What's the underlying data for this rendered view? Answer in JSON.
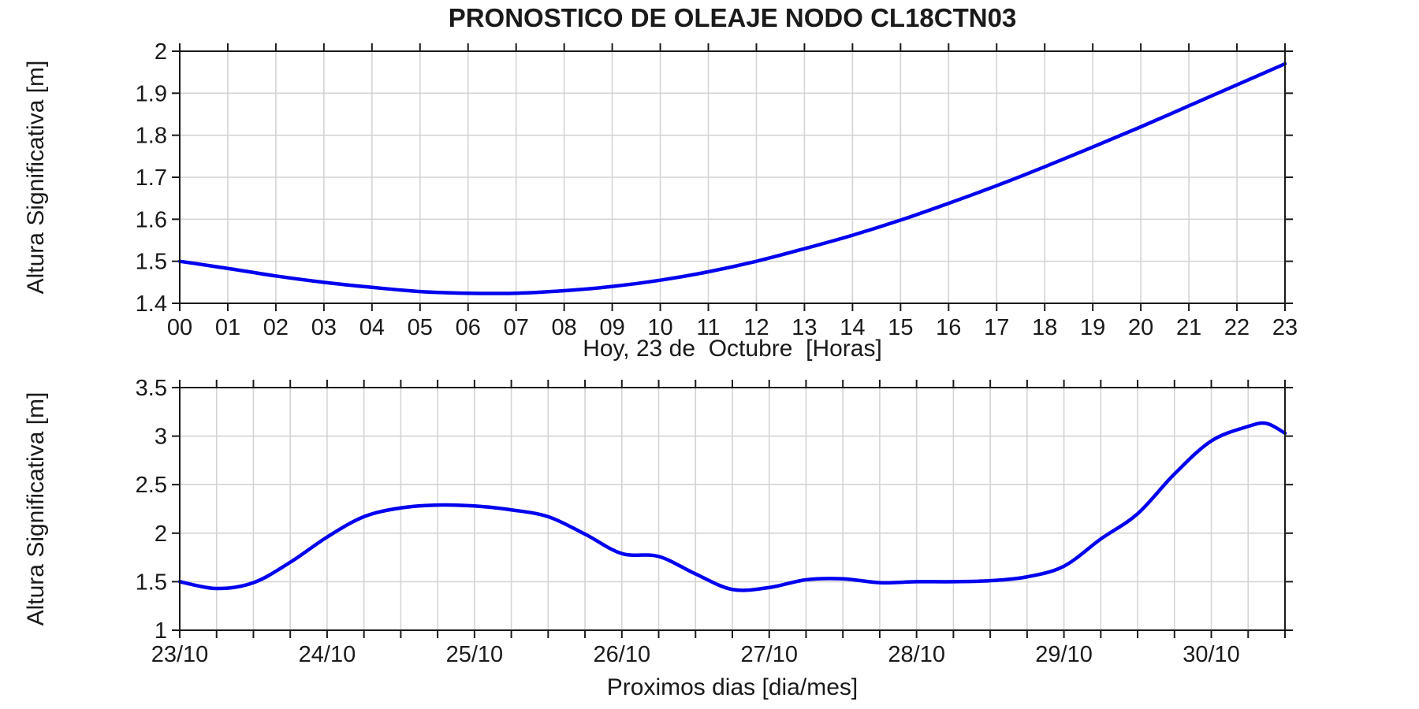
{
  "title": "PRONOSTICO DE OLEAJE NODO CL18CTN03",
  "line_color": "#0000ee",
  "grid_color": "#d4d4d4",
  "axis_color": "#1a1a1a",
  "chart_data": [
    {
      "type": "line",
      "name": "hourly-forecast-today",
      "ylabel": "Altura Significativa [m]",
      "xlabel": "Hoy, 23 de  Octubre  [Horas]",
      "xlim": [
        0,
        23
      ],
      "ylim": [
        1.4,
        2.0
      ],
      "x_tick_interval": 1,
      "y_tick_interval": 0.1,
      "x_label_interval": 1,
      "x_labels": [
        "00",
        "01",
        "02",
        "03",
        "04",
        "05",
        "06",
        "07",
        "08",
        "09",
        "10",
        "11",
        "12",
        "13",
        "14",
        "15",
        "16",
        "17",
        "18",
        "19",
        "20",
        "21",
        "22",
        "23"
      ],
      "y_labels": [
        "1.4",
        "1.5",
        "1.6",
        "1.7",
        "1.8",
        "1.9",
        "2"
      ],
      "grid": true,
      "legend": "none",
      "x": [
        0,
        1,
        2,
        3,
        4,
        5,
        6,
        7,
        8,
        9,
        10,
        11,
        12,
        13,
        14,
        15,
        16,
        17,
        18,
        19,
        20,
        21,
        22,
        23
      ],
      "y": [
        1.5,
        1.483,
        1.465,
        1.45,
        1.438,
        1.428,
        1.424,
        1.424,
        1.43,
        1.44,
        1.455,
        1.475,
        1.5,
        1.53,
        1.562,
        1.598,
        1.638,
        1.68,
        1.725,
        1.772,
        1.82,
        1.87,
        1.92,
        1.97
      ]
    },
    {
      "type": "line",
      "name": "daily-forecast-week",
      "ylabel": "Altura Significativa [m]",
      "xlabel": "Proximos dias [dia/mes]",
      "xlim": [
        0,
        7.5
      ],
      "ylim": [
        1.0,
        3.5
      ],
      "x_tick_interval": 0.25,
      "y_tick_interval": 0.5,
      "x_label_interval": 1,
      "x_labels": [
        "23/10",
        "24/10",
        "25/10",
        "26/10",
        "27/10",
        "28/10",
        "29/10",
        "30/10"
      ],
      "y_labels": [
        "1",
        "1.5",
        "2",
        "2.5",
        "3",
        "3.5"
      ],
      "grid": true,
      "legend": "none",
      "x_unit_days_from": "23/10 00:00",
      "x": [
        0,
        0.25,
        0.5,
        0.75,
        1,
        1.25,
        1.5,
        1.75,
        2,
        2.25,
        2.5,
        2.75,
        3,
        3.25,
        3.5,
        3.75,
        4,
        4.25,
        4.5,
        4.75,
        5,
        5.25,
        5.5,
        5.75,
        6,
        6.25,
        6.5,
        6.75,
        7,
        7.25,
        7.375,
        7.5
      ],
      "y": [
        1.5,
        1.43,
        1.49,
        1.7,
        1.96,
        2.17,
        2.26,
        2.29,
        2.28,
        2.24,
        2.17,
        1.99,
        1.79,
        1.76,
        1.58,
        1.42,
        1.44,
        1.52,
        1.53,
        1.49,
        1.5,
        1.5,
        1.51,
        1.55,
        1.66,
        1.94,
        2.2,
        2.61,
        2.95,
        3.1,
        3.13,
        3.03
      ]
    }
  ]
}
